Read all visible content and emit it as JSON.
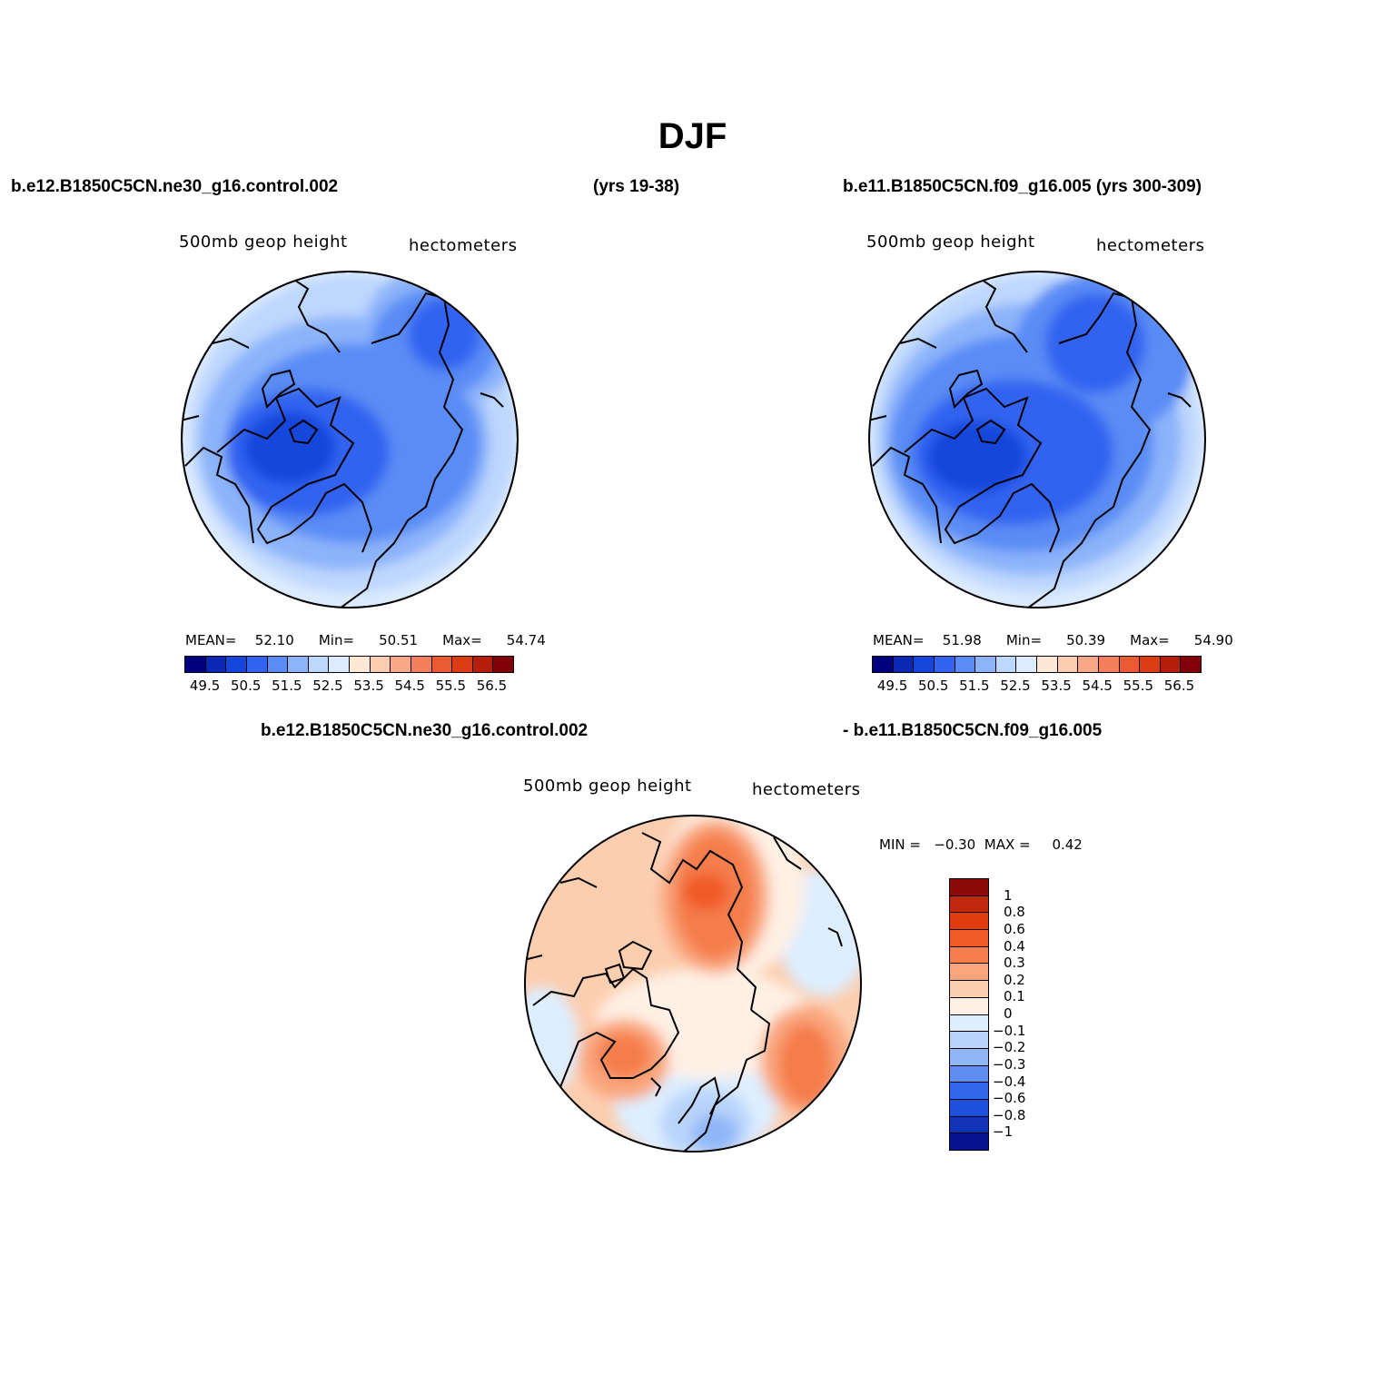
{
  "title": "DJF",
  "panels": [
    {
      "case_name": "b.e12.B1850C5CN.ne30_g16.control.002",
      "years": "(yrs 19-38)",
      "variable": "500mb geop height",
      "units": "hectometers",
      "stats": {
        "mean_label": "MEAN=",
        "mean": "52.10",
        "min_label": "Min=",
        "min": "50.51",
        "max_label": "Max=",
        "max": "54.74"
      }
    },
    {
      "case_name_with_years": "b.e11.B1850C5CN.f09_g16.005 (yrs 300-309)",
      "variable": "500mb geop height",
      "units": "hectometers",
      "stats": {
        "mean_label": "MEAN=",
        "mean": "51.98",
        "min_label": "Min=",
        "min": "50.39",
        "max_label": "Max=",
        "max": "54.90"
      }
    }
  ],
  "diff_panel": {
    "case_a": "b.e12.B1850C5CN.ne30_g16.control.002",
    "case_b": "- b.e11.B1850C5CN.f09_g16.005",
    "variable": "500mb geop height",
    "units": "hectometers",
    "min_label": "MIN =",
    "min": "−0.30",
    "max_label": "MAX =",
    "max": "0.42"
  },
  "abs_colorbar": {
    "colors": [
      "#00007f",
      "#0a28b4",
      "#1446dc",
      "#3264f0",
      "#5a8cf5",
      "#8cb4fa",
      "#bed7fd",
      "#dcebff",
      "#fde8d5",
      "#fcccb0",
      "#f9a887",
      "#f57f5a",
      "#eb5a32",
      "#dc3c14",
      "#b41e0a",
      "#82000a"
    ],
    "labels": [
      "49.5",
      "50.5",
      "51.5",
      "52.5",
      "53.5",
      "54.5",
      "55.5",
      "56.5"
    ]
  },
  "diff_colorbar": {
    "colors": [
      "#8b0a0a",
      "#c0280f",
      "#e03c0f",
      "#f05a28",
      "#f57d4b",
      "#f9a67d",
      "#fcceb0",
      "#fef0e4",
      "#ddeeff",
      "#b9d4fb",
      "#8fb6f7",
      "#5f8ef2",
      "#3366ec",
      "#1f4fdd",
      "#1232b8",
      "#06128f"
    ],
    "labels": [
      "1",
      "0.8",
      "0.6",
      "0.4",
      "0.3",
      "0.2",
      "0.1",
      "0",
      "−0.1",
      "−0.2",
      "−0.3",
      "−0.4",
      "−0.6",
      "−0.8",
      "−1"
    ]
  },
  "map_colors": {
    "abs_bg": "#fde8d5",
    "abs_levels": [
      "#f9a887",
      "#fcccb0",
      "#fde8d5",
      "#dcebff",
      "#bed7fd",
      "#8cb4fa",
      "#5a8cf5",
      "#3264f0",
      "#1446dc"
    ],
    "diff_bg": "#fcceb0",
    "coast": "#000000"
  }
}
